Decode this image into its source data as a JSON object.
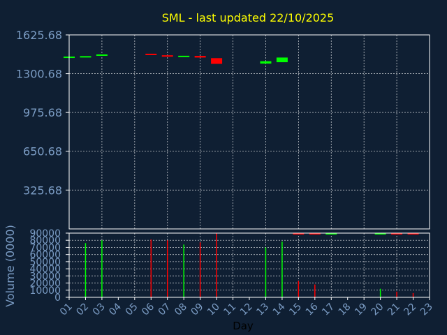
{
  "colors": {
    "background": "#0f1f33",
    "title": "#ffff00",
    "axis_text": "#7b9cc4",
    "xlabel": "#000000",
    "frame": "#ffffff",
    "grid": "#ffffff",
    "up": "#00ff00",
    "down": "#ff0000"
  },
  "chart_data": [
    {
      "type": "candlestick",
      "title": "SML - last updated 22/10/2025",
      "xlabel": "",
      "ylabel": "",
      "ylim": [
        0,
        1625.68
      ],
      "y_ticks": [
        325.68,
        650.68,
        975.68,
        1300.68,
        1625.68
      ],
      "y_tick_labels": [
        "325.68",
        "650.68",
        "975.68",
        "1300.68",
        "1625.68"
      ],
      "grid": true,
      "candles": [
        {
          "day": 1,
          "open": 1439,
          "close": 1444,
          "dir": "up"
        },
        {
          "day": 2,
          "open": 1442,
          "close": 1448,
          "dir": "up"
        },
        {
          "day": 3,
          "open": 1455,
          "close": 1462,
          "dir": "up"
        },
        {
          "day": 6,
          "open": 1468,
          "close": 1460,
          "dir": "down"
        },
        {
          "day": 7,
          "open": 1455,
          "close": 1443,
          "dir": "down"
        },
        {
          "day": 8,
          "open": 1441,
          "close": 1451,
          "dir": "up"
        },
        {
          "day": 9,
          "open": 1450,
          "close": 1436,
          "dir": "down"
        },
        {
          "day": 10,
          "open": 1431,
          "close": 1383,
          "dir": "down"
        },
        {
          "day": 13,
          "open": 1385,
          "close": 1405,
          "dir": "up"
        },
        {
          "day": 14,
          "open": 1397,
          "close": 1436,
          "dir": "up"
        }
      ]
    },
    {
      "type": "bar",
      "title": "",
      "xlabel": "Day",
      "ylabel": "Volume (0000)",
      "ylim": [
        0,
        90000
      ],
      "y_ticks": [
        0,
        10000,
        20000,
        30000,
        40000,
        50000,
        60000,
        70000,
        80000,
        90000
      ],
      "y_tick_labels": [
        "0",
        "10000",
        "20000",
        "30000",
        "40000",
        "50000",
        "60000",
        "70000",
        "80000",
        "90000"
      ],
      "x_tick_labels": [
        "01",
        "02",
        "03",
        "04",
        "05",
        "06",
        "07",
        "08",
        "09",
        "10",
        "11",
        "12",
        "13",
        "14",
        "15",
        "16",
        "17",
        "18",
        "19",
        "20",
        "21",
        "22",
        "23"
      ],
      "grid": true,
      "bars": [
        {
          "day": 2,
          "value": 76000,
          "dir": "up"
        },
        {
          "day": 3,
          "value": 80000,
          "dir": "up"
        },
        {
          "day": 6,
          "value": 81000,
          "dir": "down"
        },
        {
          "day": 7,
          "value": 80000,
          "dir": "down"
        },
        {
          "day": 8,
          "value": 74000,
          "dir": "up"
        },
        {
          "day": 9,
          "value": 77000,
          "dir": "down"
        },
        {
          "day": 10,
          "value": 90000,
          "dir": "down"
        },
        {
          "day": 13,
          "value": 70000,
          "dir": "up"
        },
        {
          "day": 14,
          "value": 78000,
          "dir": "up"
        },
        {
          "day": 15,
          "value": 23000,
          "dir": "down"
        },
        {
          "day": 16,
          "value": 18000,
          "dir": "down"
        },
        {
          "day": 20,
          "value": 12000,
          "dir": "up"
        },
        {
          "day": 21,
          "value": 8000,
          "dir": "down"
        },
        {
          "day": 22,
          "value": 6000,
          "dir": "down"
        }
      ],
      "upper_marks": [
        {
          "day": 15,
          "value": 89000,
          "dir": "down"
        },
        {
          "day": 16,
          "value": 89000,
          "dir": "down"
        },
        {
          "day": 17,
          "value": 89000,
          "dir": "up"
        },
        {
          "day": 20,
          "value": 89000,
          "dir": "up"
        },
        {
          "day": 21,
          "value": 89000,
          "dir": "down"
        },
        {
          "day": 22,
          "value": 89000,
          "dir": "down"
        }
      ]
    }
  ]
}
